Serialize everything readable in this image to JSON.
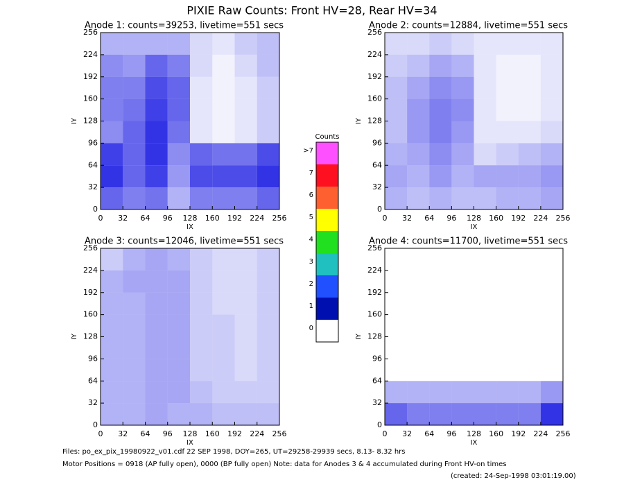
{
  "title": "PIXIE Raw Counts:  Front HV=28, Rear HV=34",
  "chart_data": [
    {
      "type": "heatmap",
      "title": "Anode 1: counts=39253, livetime=551 secs",
      "x_label": "IX",
      "y_label": "IY",
      "color": "#0000e0",
      "xlim": [
        0,
        256
      ],
      "ylim": [
        0,
        256
      ],
      "xticks": [
        0,
        32,
        64,
        96,
        128,
        160,
        192,
        224,
        256
      ],
      "yticks": [
        0,
        32,
        64,
        96,
        128,
        160,
        192,
        224,
        256
      ],
      "values": [
        [
          0.6,
          0.5,
          0.55,
          0.3,
          0.5,
          0.5,
          0.5,
          0.6
        ],
        [
          0.8,
          0.6,
          0.75,
          0.4,
          0.7,
          0.7,
          0.7,
          0.8
        ],
        [
          0.75,
          0.6,
          0.8,
          0.45,
          0.6,
          0.55,
          0.55,
          0.7
        ],
        [
          0.45,
          0.6,
          0.8,
          0.55,
          0.1,
          0.05,
          0.1,
          0.2
        ],
        [
          0.5,
          0.55,
          0.75,
          0.6,
          0.1,
          0.05,
          0.1,
          0.2
        ],
        [
          0.5,
          0.5,
          0.7,
          0.6,
          0.1,
          0.05,
          0.1,
          0.2
        ],
        [
          0.45,
          0.4,
          0.6,
          0.5,
          0.15,
          0.05,
          0.15,
          0.25
        ],
        [
          0.3,
          0.3,
          0.3,
          0.3,
          0.15,
          0.1,
          0.2,
          0.25
        ]
      ]
    },
    {
      "type": "heatmap",
      "title": "Anode 2: counts=12884, livetime=551 secs",
      "x_label": "IX",
      "y_label": "IY",
      "color": "#0000e0",
      "xlim": [
        0,
        256
      ],
      "ylim": [
        0,
        256
      ],
      "xticks": [
        0,
        32,
        64,
        96,
        128,
        160,
        192,
        224,
        256
      ],
      "yticks": [
        0,
        32,
        64,
        96,
        128,
        160,
        192,
        224,
        256
      ],
      "values": [
        [
          0.3,
          0.25,
          0.3,
          0.25,
          0.25,
          0.3,
          0.3,
          0.35
        ],
        [
          0.35,
          0.3,
          0.4,
          0.3,
          0.35,
          0.35,
          0.35,
          0.4
        ],
        [
          0.3,
          0.35,
          0.45,
          0.35,
          0.15,
          0.2,
          0.25,
          0.3
        ],
        [
          0.25,
          0.4,
          0.5,
          0.4,
          0.1,
          0.1,
          0.1,
          0.15
        ],
        [
          0.25,
          0.4,
          0.5,
          0.45,
          0.1,
          0.05,
          0.05,
          0.1
        ],
        [
          0.25,
          0.35,
          0.45,
          0.4,
          0.1,
          0.05,
          0.05,
          0.1
        ],
        [
          0.2,
          0.25,
          0.35,
          0.3,
          0.1,
          0.05,
          0.05,
          0.1
        ],
        [
          0.15,
          0.15,
          0.2,
          0.15,
          0.1,
          0.1,
          0.1,
          0.1
        ]
      ]
    },
    {
      "type": "heatmap",
      "title": "Anode 3: counts=12046, livetime=551 secs",
      "x_label": "IX",
      "y_label": "IY",
      "color": "#0000e0",
      "xlim": [
        0,
        256
      ],
      "ylim": [
        0,
        256
      ],
      "xticks": [
        0,
        32,
        64,
        96,
        128,
        160,
        192,
        224,
        256
      ],
      "yticks": [
        0,
        32,
        64,
        96,
        128,
        160,
        192,
        224,
        256
      ],
      "values": [
        [
          0.3,
          0.3,
          0.35,
          0.3,
          0.3,
          0.25,
          0.25,
          0.25
        ],
        [
          0.3,
          0.3,
          0.35,
          0.35,
          0.25,
          0.2,
          0.2,
          0.2
        ],
        [
          0.3,
          0.3,
          0.35,
          0.35,
          0.2,
          0.2,
          0.15,
          0.2
        ],
        [
          0.3,
          0.3,
          0.35,
          0.35,
          0.2,
          0.2,
          0.15,
          0.2
        ],
        [
          0.3,
          0.3,
          0.35,
          0.35,
          0.2,
          0.2,
          0.15,
          0.2
        ],
        [
          0.3,
          0.3,
          0.35,
          0.35,
          0.2,
          0.15,
          0.15,
          0.2
        ],
        [
          0.3,
          0.35,
          0.35,
          0.35,
          0.2,
          0.15,
          0.15,
          0.2
        ],
        [
          0.2,
          0.3,
          0.35,
          0.3,
          0.2,
          0.15,
          0.15,
          0.2
        ]
      ]
    },
    {
      "type": "heatmap",
      "title": "Anode 4: counts=11700, livetime=551 secs",
      "x_label": "IX",
      "y_label": "IY",
      "color": "#0000e0",
      "xlim": [
        0,
        256
      ],
      "ylim": [
        0,
        256
      ],
      "xticks": [
        0,
        32,
        64,
        96,
        128,
        160,
        192,
        224,
        256
      ],
      "yticks": [
        0,
        32,
        64,
        96,
        128,
        160,
        192,
        224,
        256
      ],
      "values": [
        [
          0.6,
          0.5,
          0.5,
          0.5,
          0.5,
          0.5,
          0.5,
          0.8
        ],
        [
          0.3,
          0.3,
          0.3,
          0.3,
          0.3,
          0.3,
          0.3,
          0.4
        ],
        [
          0,
          0,
          0,
          0,
          0,
          0,
          0,
          0
        ],
        [
          0,
          0,
          0,
          0,
          0,
          0,
          0,
          0
        ],
        [
          0,
          0,
          0,
          0,
          0,
          0,
          0,
          0
        ],
        [
          0,
          0,
          0,
          0,
          0,
          0,
          0,
          0
        ],
        [
          0,
          0,
          0,
          0,
          0,
          0,
          0,
          0
        ],
        [
          0,
          0,
          0,
          0,
          0,
          0,
          0,
          0
        ]
      ]
    }
  ],
  "colorbar": {
    "title": "Counts",
    "labels": [
      "0",
      "1",
      "2",
      "3",
      "4",
      "5",
      "6",
      "7",
      ">7"
    ],
    "colors": [
      "#ffffff",
      "#0010b0",
      "#2050ff",
      "#20c0c0",
      "#20e020",
      "#ffff00",
      "#ff6030",
      "#ff1020",
      "#ff50ff"
    ]
  },
  "footer": [
    "Files: po_ex_pix_19980922_v01.cdf    22 SEP 1998, DOY=265, UT=29258-29939 secs,  8.13- 8.32 hrs",
    "Motor Positions = 0918 (AP fully open), 0000 (BP fully open)    Note: data for Anodes 3 & 4 accumulated during Front HV-on times",
    "(created: 24-Sep-1998 03:01:19.00)"
  ]
}
